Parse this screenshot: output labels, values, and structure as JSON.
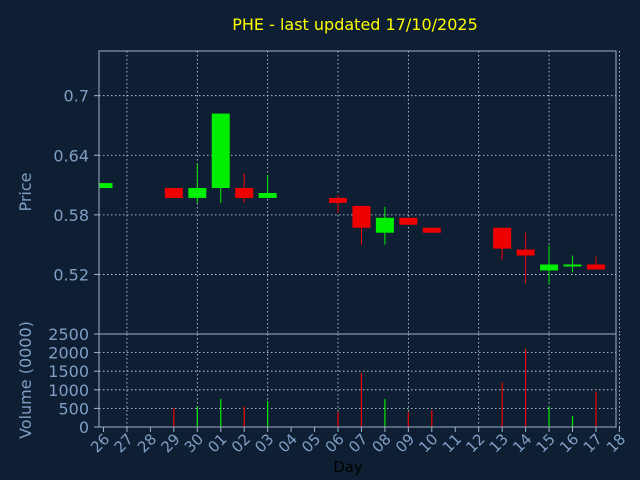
{
  "colors": {
    "background": "#0f1f33",
    "axes": "#9fb2c8",
    "grid": "#d9e2ec",
    "up": "#00ee00",
    "down": "#ee0000",
    "title": "#ffff00",
    "tick_text": "#7f9fc5",
    "label_text": "#7f9fc5",
    "xlabel_text": "#000000"
  },
  "chart_data": [
    {
      "type": "candlestick",
      "title": "PHE - last updated 17/10/2025",
      "ylabel": "Price",
      "ylim": [
        0.46,
        0.745
      ],
      "yticks": [
        0.52,
        0.58,
        0.64,
        0.7
      ],
      "ytick_labels": [
        "0.52",
        "0.58",
        "0.64",
        "0.7"
      ],
      "grid": true,
      "x": [
        "26",
        "27",
        "28",
        "29",
        "30",
        "01",
        "02",
        "03",
        "04",
        "05",
        "06",
        "07",
        "08",
        "09",
        "10",
        "11",
        "12",
        "13",
        "14",
        "15",
        "16",
        "17",
        "18"
      ],
      "candles": [
        {
          "x": "26",
          "open": 0.607,
          "close": 0.612,
          "high": 0.612,
          "low": 0.607
        },
        {
          "x": "29",
          "open": 0.607,
          "close": 0.597,
          "high": 0.607,
          "low": 0.597
        },
        {
          "x": "30",
          "open": 0.597,
          "close": 0.607,
          "high": 0.632,
          "low": 0.592
        },
        {
          "x": "01",
          "open": 0.607,
          "close": 0.682,
          "high": 0.682,
          "low": 0.592
        },
        {
          "x": "02",
          "open": 0.607,
          "close": 0.597,
          "high": 0.622,
          "low": 0.592
        },
        {
          "x": "03",
          "open": 0.597,
          "close": 0.602,
          "high": 0.62,
          "low": 0.597
        },
        {
          "x": "06",
          "open": 0.597,
          "close": 0.592,
          "high": 0.6,
          "low": 0.582
        },
        {
          "x": "07",
          "open": 0.589,
          "close": 0.567,
          "high": 0.589,
          "low": 0.55
        },
        {
          "x": "08",
          "open": 0.562,
          "close": 0.577,
          "high": 0.588,
          "low": 0.55
        },
        {
          "x": "09",
          "open": 0.577,
          "close": 0.57,
          "high": 0.577,
          "low": 0.57
        },
        {
          "x": "10",
          "open": 0.567,
          "close": 0.562,
          "high": 0.567,
          "low": 0.562
        },
        {
          "x": "13",
          "open": 0.567,
          "close": 0.546,
          "high": 0.567,
          "low": 0.535
        },
        {
          "x": "14",
          "open": 0.545,
          "close": 0.539,
          "high": 0.562,
          "low": 0.511
        },
        {
          "x": "15",
          "open": 0.524,
          "close": 0.53,
          "high": 0.549,
          "low": 0.51
        },
        {
          "x": "16",
          "open": 0.528,
          "close": 0.53,
          "high": 0.539,
          "low": 0.522
        },
        {
          "x": "17",
          "open": 0.53,
          "close": 0.525,
          "high": 0.538,
          "low": 0.525
        }
      ]
    },
    {
      "type": "bar",
      "xlabel": "Day",
      "ylabel": "Volume (0000)",
      "ylim": [
        0,
        2500
      ],
      "yticks": [
        0,
        500,
        1000,
        1500,
        2000,
        2500
      ],
      "ytick_labels": [
        "0",
        "500",
        "1000",
        "1500",
        "2000",
        "2500"
      ],
      "grid": true,
      "x": [
        "26",
        "27",
        "28",
        "29",
        "30",
        "01",
        "02",
        "03",
        "04",
        "05",
        "06",
        "07",
        "08",
        "09",
        "10",
        "11",
        "12",
        "13",
        "14",
        "15",
        "16",
        "17",
        "18"
      ],
      "bars": [
        {
          "x": "29",
          "value": 500,
          "direction": "down"
        },
        {
          "x": "30",
          "value": 550,
          "direction": "up"
        },
        {
          "x": "01",
          "value": 750,
          "direction": "up"
        },
        {
          "x": "02",
          "value": 550,
          "direction": "down"
        },
        {
          "x": "03",
          "value": 700,
          "direction": "up"
        },
        {
          "x": "06",
          "value": 400,
          "direction": "down"
        },
        {
          "x": "07",
          "value": 1450,
          "direction": "down"
        },
        {
          "x": "08",
          "value": 750,
          "direction": "up"
        },
        {
          "x": "09",
          "value": 400,
          "direction": "down"
        },
        {
          "x": "10",
          "value": 450,
          "direction": "down"
        },
        {
          "x": "13",
          "value": 1200,
          "direction": "down"
        },
        {
          "x": "14",
          "value": 2100,
          "direction": "down"
        },
        {
          "x": "15",
          "value": 550,
          "direction": "up"
        },
        {
          "x": "16",
          "value": 300,
          "direction": "up"
        },
        {
          "x": "17",
          "value": 950,
          "direction": "down"
        }
      ]
    }
  ]
}
